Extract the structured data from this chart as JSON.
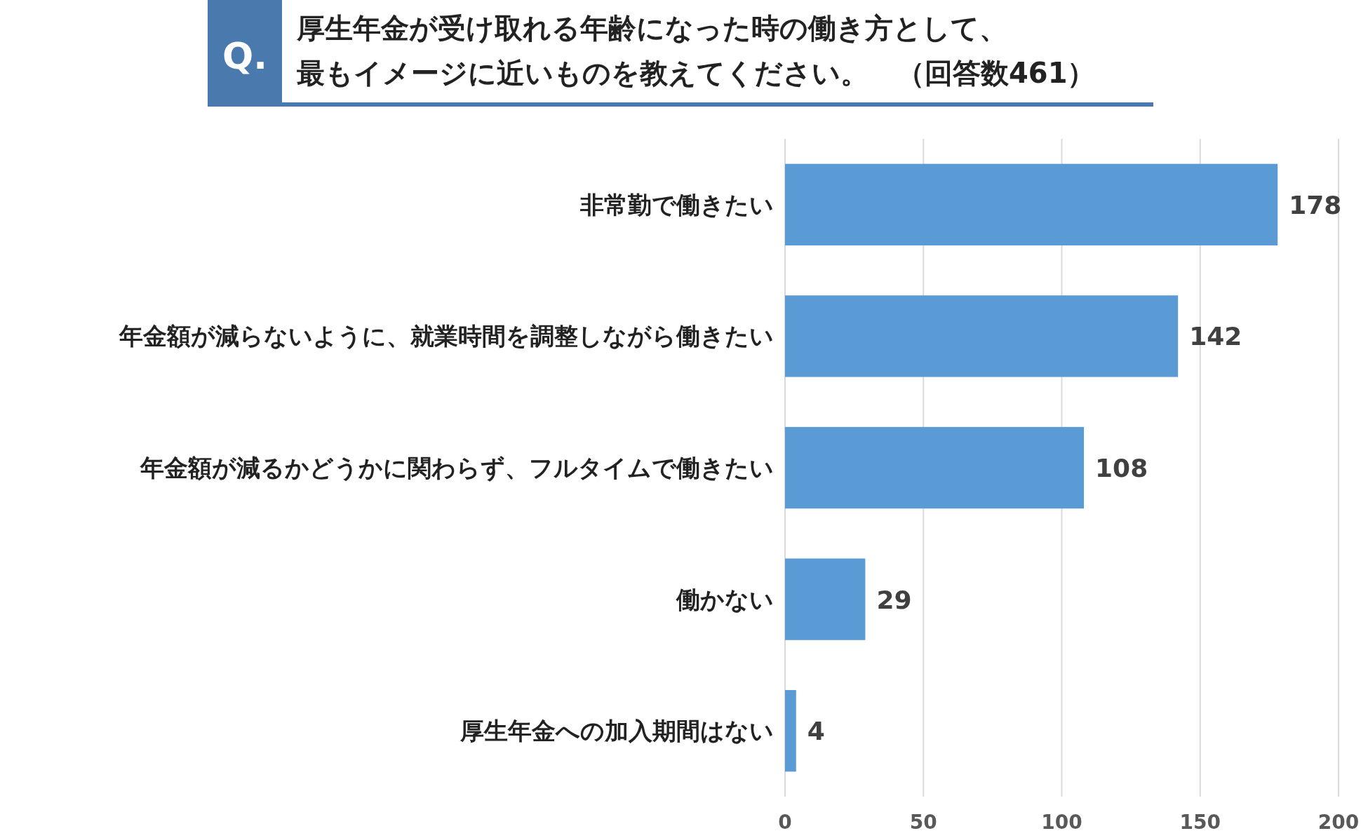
{
  "chart_data": {
    "type": "bar",
    "orientation": "horizontal",
    "title": "厚生年金が受け取れる年齢になった時の働き方として、最もイメージに近いものを教えてください。　（回答数461）",
    "annotations": [
      "Q."
    ],
    "categories": [
      "非常勤で働きたい",
      "年金額が減らないように、就業時間を調整しながら働きたい",
      "年金額が減るかどうかに関わらず、フルタイムで働きたい",
      "働かない",
      "厚生年金への加入期間はない"
    ],
    "values": [
      178,
      142,
      108,
      29,
      4
    ],
    "color": "#5b9bd5",
    "xlim": [
      0,
      200
    ],
    "xticks": [
      0,
      50,
      100,
      150,
      200
    ],
    "grid": "x",
    "data_labels": true
  }
}
